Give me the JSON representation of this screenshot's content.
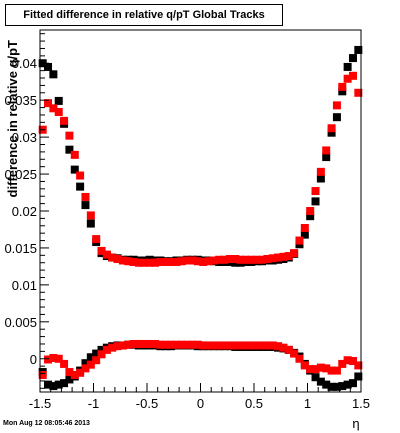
{
  "chart_data": {
    "type": "scatter",
    "title": "Fitted difference in relative q/pT  Global Tracks",
    "xlabel": "η",
    "ylabel": "difference in relative q/pT",
    "xlim": [
      -1.5,
      1.5
    ],
    "ylim": [
      -0.0045,
      0.0445
    ],
    "xticks": [
      "-1.5",
      "-1",
      "-0.5",
      "0",
      "0.5",
      "1",
      "1.5"
    ],
    "yticks": [
      "0",
      "0.005",
      "0.01",
      "0.015",
      "0.02",
      "0.025",
      "0.03",
      "0.035",
      "0.04"
    ],
    "grid": false,
    "legend": "none",
    "series": [
      {
        "color": "#000000",
        "x": [
          -1.475,
          -1.425,
          -1.375,
          -1.325,
          -1.275,
          -1.225,
          -1.175,
          -1.125,
          -1.075,
          -1.025,
          -0.975,
          -0.925,
          -0.875,
          -0.825,
          -0.775,
          -0.725,
          -0.675,
          -0.625,
          -0.575,
          -0.525,
          -0.475,
          -0.425,
          -0.375,
          -0.325,
          -0.275,
          -0.225,
          -0.175,
          -0.125,
          -0.075,
          -0.025,
          0.025,
          0.075,
          0.125,
          0.175,
          0.225,
          0.275,
          0.325,
          0.375,
          0.425,
          0.475,
          0.525,
          0.575,
          0.625,
          0.675,
          0.725,
          0.775,
          0.825,
          0.875,
          0.925,
          0.975,
          1.025,
          1.075,
          1.125,
          1.175,
          1.225,
          1.275,
          1.325,
          1.375,
          1.425,
          1.475
        ],
        "y": [
          0.04,
          0.0395,
          0.0385,
          0.0349,
          0.0318,
          0.0283,
          0.0256,
          0.0233,
          0.0208,
          0.0183,
          0.0158,
          0.0143,
          0.0139,
          0.0137,
          0.0136,
          0.0134,
          0.0134,
          0.0134,
          0.0133,
          0.0133,
          0.0134,
          0.0133,
          0.0133,
          0.0132,
          0.0132,
          0.0133,
          0.0133,
          0.0134,
          0.0134,
          0.0134,
          0.0133,
          0.0133,
          0.0132,
          0.0131,
          0.0131,
          0.0131,
          0.013,
          0.013,
          0.0131,
          0.0131,
          0.0132,
          0.0132,
          0.0133,
          0.0133,
          0.0134,
          0.0135,
          0.0137,
          0.0142,
          0.0155,
          0.0168,
          0.0193,
          0.0213,
          0.0244,
          0.0273,
          0.0306,
          0.0327,
          0.0362,
          0.0395,
          0.0407,
          0.0418
        ]
      },
      {
        "color": "#ff0000",
        "x": [
          -1.475,
          -1.425,
          -1.375,
          -1.325,
          -1.275,
          -1.225,
          -1.175,
          -1.125,
          -1.075,
          -1.025,
          -0.975,
          -0.925,
          -0.875,
          -0.825,
          -0.775,
          -0.725,
          -0.675,
          -0.625,
          -0.575,
          -0.525,
          -0.475,
          -0.425,
          -0.375,
          -0.325,
          -0.275,
          -0.225,
          -0.175,
          -0.125,
          -0.075,
          -0.025,
          0.025,
          0.075,
          0.125,
          0.175,
          0.225,
          0.275,
          0.325,
          0.375,
          0.425,
          0.475,
          0.525,
          0.575,
          0.625,
          0.675,
          0.725,
          0.775,
          0.825,
          0.875,
          0.925,
          0.975,
          1.025,
          1.075,
          1.125,
          1.175,
          1.225,
          1.275,
          1.325,
          1.375,
          1.425,
          1.475
        ],
        "y": [
          0.031,
          0.0346,
          0.0339,
          0.0334,
          0.0322,
          0.0302,
          0.0276,
          0.0248,
          0.0219,
          0.0194,
          0.0162,
          0.0146,
          0.0141,
          0.0137,
          0.0135,
          0.0133,
          0.0132,
          0.0131,
          0.013,
          0.013,
          0.013,
          0.013,
          0.0131,
          0.0131,
          0.0131,
          0.0131,
          0.0132,
          0.0133,
          0.0133,
          0.0132,
          0.0131,
          0.0132,
          0.0133,
          0.0134,
          0.0134,
          0.0135,
          0.0135,
          0.0134,
          0.0134,
          0.0134,
          0.0134,
          0.0134,
          0.0135,
          0.0136,
          0.0137,
          0.0138,
          0.0139,
          0.0143,
          0.016,
          0.0177,
          0.02,
          0.0227,
          0.0253,
          0.0282,
          0.0312,
          0.0343,
          0.0368,
          0.0379,
          0.0383,
          0.036
        ]
      },
      {
        "color": "#000000",
        "x": [
          -1.475,
          -1.425,
          -1.375,
          -1.325,
          -1.275,
          -1.225,
          -1.175,
          -1.125,
          -1.075,
          -1.025,
          -0.975,
          -0.925,
          -0.875,
          -0.825,
          -0.775,
          -0.725,
          -0.675,
          -0.625,
          -0.575,
          -0.525,
          -0.475,
          -0.425,
          -0.375,
          -0.325,
          -0.275,
          -0.225,
          -0.175,
          -0.125,
          -0.075,
          -0.025,
          0.025,
          0.075,
          0.125,
          0.175,
          0.225,
          0.275,
          0.325,
          0.375,
          0.425,
          0.475,
          0.525,
          0.575,
          0.625,
          0.675,
          0.725,
          0.775,
          0.825,
          0.875,
          0.925,
          0.975,
          1.025,
          1.075,
          1.125,
          1.175,
          1.225,
          1.275,
          1.325,
          1.375,
          1.425,
          1.475
        ],
        "y": [
          -0.0018,
          -0.0035,
          -0.0037,
          -0.0035,
          -0.0033,
          -0.0028,
          -0.0024,
          -0.0016,
          -0.0006,
          0.0002,
          0.0007,
          0.0012,
          0.0015,
          0.0017,
          0.0018,
          0.0018,
          0.0019,
          0.0019,
          0.0018,
          0.0018,
          0.0018,
          0.0018,
          0.0017,
          0.0017,
          0.0017,
          0.0018,
          0.0018,
          0.0018,
          0.0018,
          0.0017,
          0.0017,
          0.0017,
          0.0017,
          0.0017,
          0.0017,
          0.0017,
          0.0016,
          0.0016,
          0.0016,
          0.0016,
          0.0016,
          0.0016,
          0.0016,
          0.0016,
          0.0015,
          0.0014,
          0.0012,
          0.0008,
          0.0003,
          -0.0007,
          -0.0016,
          -0.0025,
          -0.0031,
          -0.0035,
          -0.0038,
          -0.0038,
          -0.0037,
          -0.0035,
          -0.0033,
          -0.0024
        ]
      },
      {
        "color": "#ff0000",
        "x": [
          -1.475,
          -1.425,
          -1.375,
          -1.325,
          -1.275,
          -1.225,
          -1.175,
          -1.125,
          -1.075,
          -1.025,
          -0.975,
          -0.925,
          -0.875,
          -0.825,
          -0.775,
          -0.725,
          -0.675,
          -0.625,
          -0.575,
          -0.525,
          -0.475,
          -0.425,
          -0.375,
          -0.325,
          -0.275,
          -0.225,
          -0.175,
          -0.125,
          -0.075,
          -0.025,
          0.025,
          0.075,
          0.125,
          0.175,
          0.225,
          0.275,
          0.325,
          0.375,
          0.425,
          0.475,
          0.525,
          0.575,
          0.625,
          0.675,
          0.725,
          0.775,
          0.825,
          0.875,
          0.925,
          0.975,
          1.025,
          1.075,
          1.125,
          1.175,
          1.225,
          1.275,
          1.325,
          1.375,
          1.425,
          1.475
        ],
        "y": [
          -0.0022,
          -0.0001,
          0.0001,
          0.0,
          -0.0007,
          -0.0018,
          -0.0022,
          -0.0019,
          -0.0013,
          -0.0008,
          -0.0002,
          0.0006,
          0.0012,
          0.0015,
          0.0017,
          0.0018,
          0.0019,
          0.002,
          0.002,
          0.002,
          0.002,
          0.002,
          0.0019,
          0.0019,
          0.0019,
          0.0019,
          0.0019,
          0.0019,
          0.0019,
          0.0019,
          0.0018,
          0.0018,
          0.0018,
          0.0018,
          0.0018,
          0.0018,
          0.0018,
          0.0018,
          0.0018,
          0.0018,
          0.0018,
          0.0018,
          0.0018,
          0.0018,
          0.0017,
          0.0015,
          0.0012,
          0.0007,
          0.0,
          -0.0009,
          -0.0014,
          -0.0014,
          -0.0012,
          -0.0013,
          -0.0016,
          -0.0016,
          -0.0007,
          -0.0002,
          -0.0003,
          -0.0009
        ]
      }
    ]
  },
  "timestamp": "Mon Aug 12 08:05:46 2013"
}
